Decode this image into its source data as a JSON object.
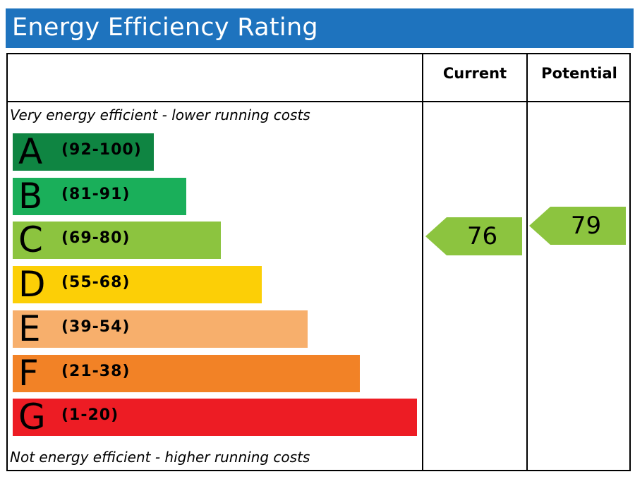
{
  "title": "Energy Efficiency Rating",
  "columns": {
    "current": "Current",
    "potential": "Potential"
  },
  "notes": {
    "top": "Very energy efficient - lower running costs",
    "bottom": "Not energy efficient - higher running costs"
  },
  "chart_data": {
    "type": "bar",
    "categories": [
      "A",
      "B",
      "C",
      "D",
      "E",
      "F",
      "G"
    ],
    "ranges": [
      "(92-100)",
      "(81-91)",
      "(69-80)",
      "(55-68)",
      "(39-54)",
      "(21-38)",
      "(1-20)"
    ],
    "range_bounds": [
      [
        92,
        100
      ],
      [
        81,
        91
      ],
      [
        69,
        80
      ],
      [
        55,
        68
      ],
      [
        39,
        54
      ],
      [
        21,
        38
      ],
      [
        1,
        20
      ]
    ],
    "colors": [
      "#0f8542",
      "#1aaf5a",
      "#8cc43f",
      "#fccf06",
      "#f7af6c",
      "#f28226",
      "#ed1c24"
    ],
    "current": {
      "value": 76,
      "band": "C",
      "color": "#8cc43f"
    },
    "potential": {
      "value": 79,
      "band": "C",
      "color": "#8cc43f"
    }
  }
}
